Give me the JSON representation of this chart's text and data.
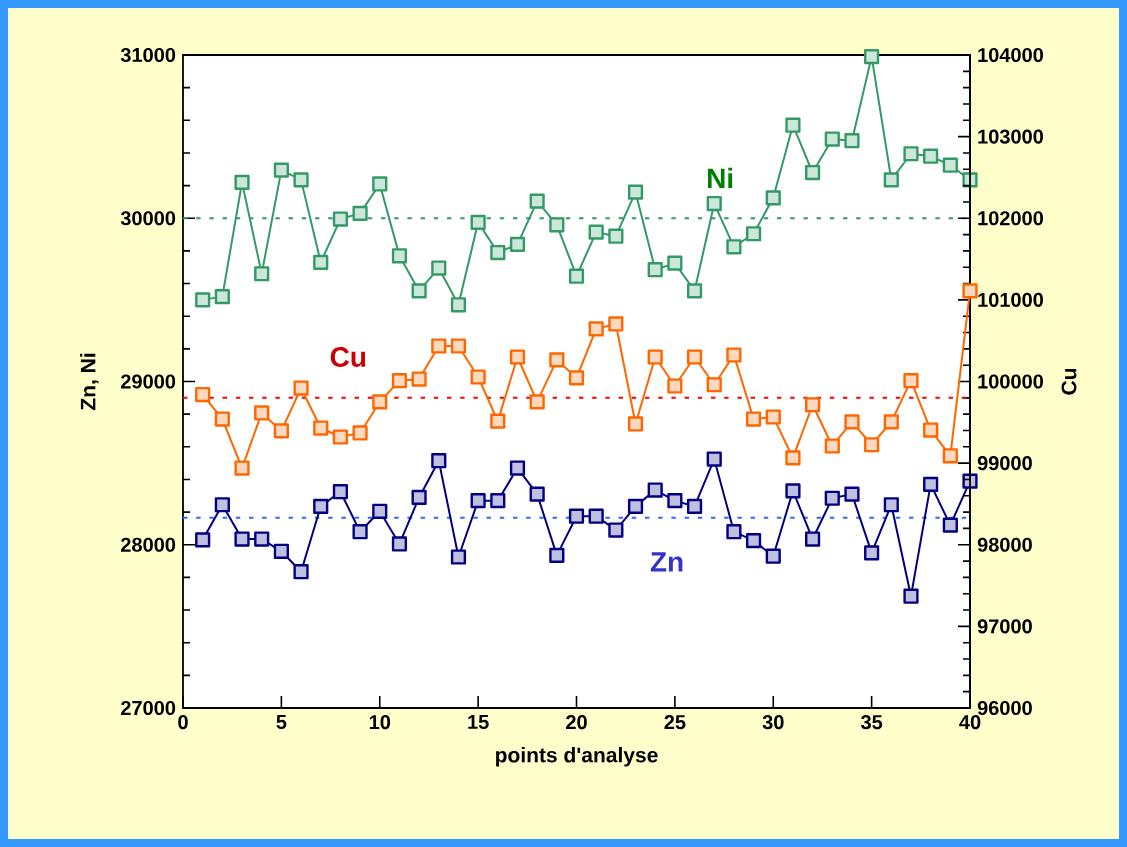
{
  "chart_data": {
    "type": "line",
    "xlabel": "points d'analyse",
    "ylabel": "Zn, Ni",
    "y2label": "Cu",
    "x": [
      1,
      2,
      3,
      4,
      5,
      6,
      7,
      8,
      9,
      10,
      11,
      12,
      13,
      14,
      15,
      16,
      17,
      18,
      19,
      20,
      21,
      22,
      23,
      24,
      25,
      26,
      27,
      28,
      29,
      30,
      31,
      32,
      33,
      34,
      35,
      36,
      37,
      38,
      39,
      40
    ],
    "series": [
      {
        "name": "Ni",
        "color": "#339966",
        "values": [
          29500,
          29520,
          30220,
          29660,
          30295,
          30235,
          29730,
          29995,
          30030,
          30210,
          29770,
          29555,
          29695,
          29470,
          29975,
          29790,
          29840,
          30105,
          29960,
          29645,
          29915,
          29890,
          30160,
          29685,
          29725,
          29555,
          30090,
          29825,
          29905,
          30125,
          30570,
          30280,
          30485,
          30475,
          30990,
          30235,
          30395,
          30380,
          30325,
          30235
        ]
      },
      {
        "name": "Cu",
        "color": "#ff6600",
        "axis": "y2",
        "values": [
          99840,
          99540,
          98940,
          99615,
          99395,
          99920,
          99430,
          99320,
          99370,
          99750,
          100010,
          100030,
          100435,
          100435,
          100055,
          99515,
          100300,
          99750,
          100265,
          100045,
          100645,
          100705,
          99480,
          100300,
          99945,
          100300,
          99960,
          100325,
          99540,
          99565,
          99065,
          99715,
          99210,
          99505,
          99225,
          99505,
          100010,
          99405,
          99090,
          101110
        ]
      },
      {
        "name": "Zn",
        "color": "#000080",
        "values": [
          28030,
          28245,
          28035,
          28035,
          27960,
          27835,
          28235,
          28325,
          28080,
          28205,
          28005,
          28290,
          28515,
          27925,
          28270,
          28270,
          28470,
          28310,
          27935,
          28175,
          28175,
          28090,
          28235,
          28335,
          28270,
          28235,
          28525,
          28080,
          28025,
          27930,
          28330,
          28035,
          28285,
          28310,
          27950,
          28245,
          27685,
          28370,
          28120,
          28390
        ]
      }
    ],
    "ref_lines": [
      {
        "axis": "y",
        "value": 30000,
        "color": "#339966",
        "line_style": "dotted"
      },
      {
        "axis": "y2",
        "value": 99800,
        "color": "#ff0000",
        "line_style": "dotted"
      },
      {
        "axis": "y",
        "value": 28165,
        "color": "#3366ff",
        "line_style": "dotted"
      }
    ],
    "xlim": [
      0,
      40
    ],
    "xticks": [
      0,
      5,
      10,
      15,
      20,
      25,
      30,
      35,
      40
    ],
    "ylim": [
      27000,
      31000
    ],
    "yticks": [
      27000,
      28000,
      29000,
      30000,
      31000
    ],
    "y2lim": [
      96000,
      104000
    ],
    "y2ticks": [
      96000,
      97000,
      98000,
      99000,
      100000,
      101000,
      102000,
      103000,
      104000
    ],
    "marker": "square",
    "line_style": "solid"
  }
}
